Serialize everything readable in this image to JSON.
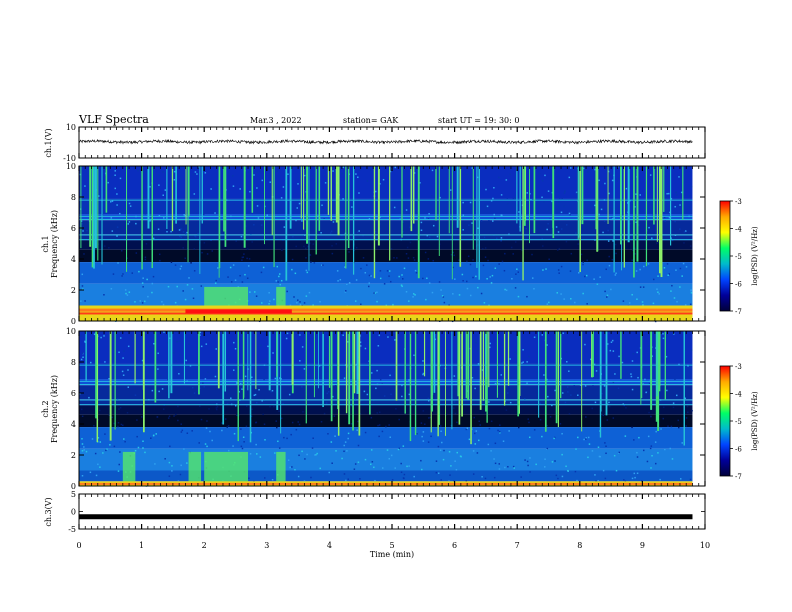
{
  "header": {
    "title": "VLF Spectra",
    "date": "Mar.3 , 2022",
    "station": "station= GAK",
    "start": "start UT = 19: 30: 0"
  },
  "colorbar": {
    "label": "log(PSD) (V²/Hz)",
    "ticks": [
      "-3",
      "-4",
      "-5",
      "-6",
      "-7"
    ],
    "colors": [
      "#ff0000",
      "#ffaa00",
      "#ffff00",
      "#00ff66",
      "#00bbcc",
      "#0044ff",
      "#000099",
      "#00003a"
    ]
  },
  "chart_data": [
    {
      "type": "line",
      "panel": "ch1 waveform",
      "ylabel": "ch.1(V)",
      "ylim": [
        -10,
        10
      ],
      "yticks": [
        "10",
        "-10"
      ],
      "description_values": {
        "x_min": [
          0,
          9.8
        ],
        "level_v": 0.5,
        "noise_amplitude_v": 1.5
      }
    },
    {
      "type": "heatmap",
      "panel": "ch1 spectrogram",
      "ylabel_top": "ch.1",
      "ylabel": "Frequency (kHz)",
      "ylim": [
        0,
        10
      ],
      "yticks": [
        "0",
        "2",
        "4",
        "6",
        "8",
        "10"
      ],
      "x_range_min": [
        0,
        9.8
      ],
      "z_range_log_psd": [
        -7,
        -3
      ],
      "horizontal_lines_khz": [
        5.25,
        5.55,
        6.55,
        6.75,
        7.8
      ],
      "strong_band_khz": [
        0,
        1.0
      ],
      "burst_min": [
        [
          2.0,
          2.7
        ],
        [
          3.15,
          3.3
        ]
      ]
    },
    {
      "type": "heatmap",
      "panel": "ch2 spectrogram",
      "ylabel_top": "ch.2",
      "ylabel": "Frequency (kHz)",
      "ylim": [
        0,
        10
      ],
      "yticks": [
        "0",
        "2",
        "4",
        "6",
        "8",
        "10"
      ],
      "x_range_min": [
        0,
        9.8
      ],
      "z_range_log_psd": [
        -7,
        -3
      ],
      "horizontal_lines_khz": [
        5.25,
        5.55,
        6.55,
        6.75,
        7.8
      ],
      "strong_band_khz": [
        0,
        0.3
      ],
      "burst_min": [
        [
          0.7,
          0.9
        ],
        [
          1.75,
          1.95
        ],
        [
          2.0,
          2.7
        ],
        [
          3.15,
          3.3
        ]
      ]
    },
    {
      "type": "line",
      "panel": "ch3 waveform",
      "ylabel": "ch.3(V)",
      "ylim": [
        -5,
        5
      ],
      "yticks": [
        "5",
        "0",
        "-5"
      ],
      "xlabel": "Time (min)",
      "xticks": [
        "0",
        "1",
        "2",
        "3",
        "4",
        "5",
        "6",
        "7",
        "8",
        "9",
        "10"
      ],
      "xlim": [
        0,
        10
      ],
      "description_values": {
        "x_min": [
          0,
          9.8
        ],
        "level_v": -1.5
      }
    }
  ]
}
